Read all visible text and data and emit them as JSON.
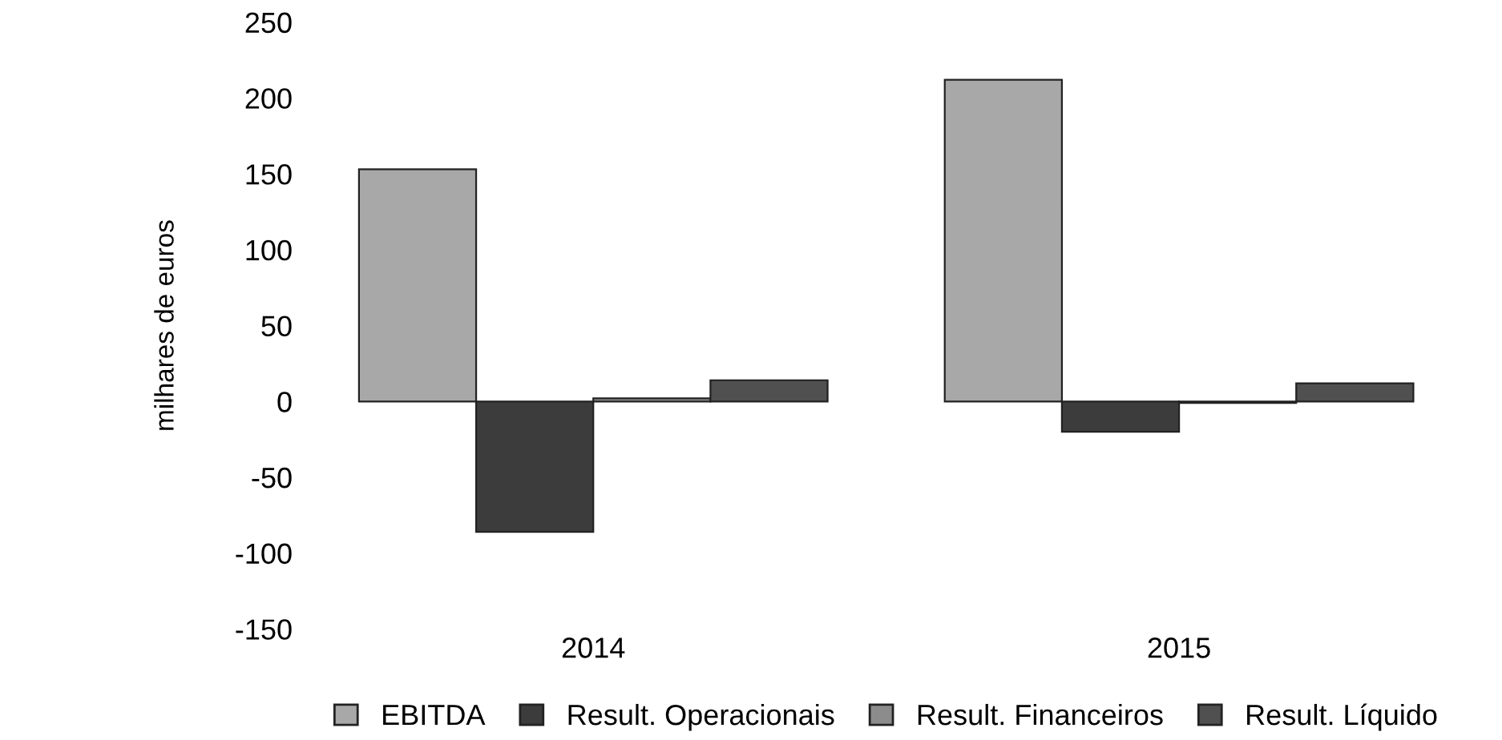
{
  "chart_data": {
    "type": "bar",
    "ylabel": "milhares de euros",
    "categories": [
      "2014",
      "2015"
    ],
    "series": [
      {
        "name": "EBITDA",
        "color": "#a8a8a8",
        "values": [
          153,
          212
        ]
      },
      {
        "name": "Result. Operacionais",
        "color": "#3c3c3c",
        "values": [
          -86,
          -20
        ]
      },
      {
        "name": "Result. Financeiros",
        "color": "#8c8c8c",
        "values": [
          2,
          -1
        ]
      },
      {
        "name": "Result. Líquido",
        "color": "#505050",
        "values": [
          14,
          12
        ]
      }
    ],
    "ylim": [
      -150,
      250
    ],
    "yticks": [
      -150,
      -100,
      -50,
      0,
      50,
      100,
      150,
      200,
      250
    ],
    "legend": "bottom",
    "grid": false
  }
}
